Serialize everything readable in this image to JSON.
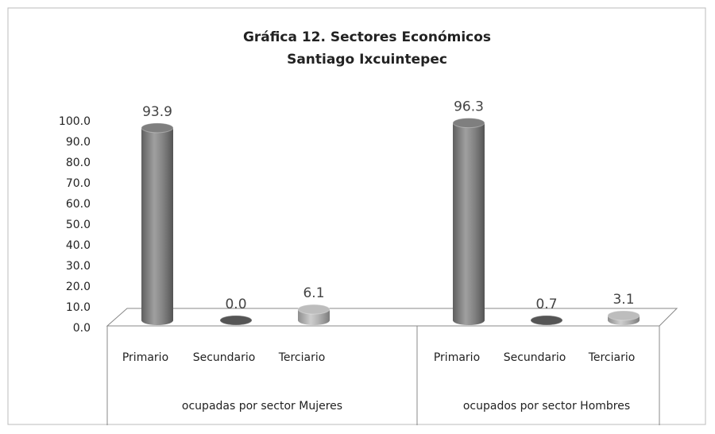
{
  "chart_data": {
    "type": "bar",
    "title": "Gráfica 12. Sectores Económicos",
    "subtitle": "Santiago Ixcuintepec",
    "colors": [
      "#7f7f7f",
      "#555555",
      "#bdbdbd"
    ],
    "groups": [
      {
        "name": "ocupadas por sector Mujeres",
        "categories": [
          "Primario",
          "Secundario",
          "Terciario"
        ],
        "values": [
          93.9,
          0.0,
          6.1
        ],
        "value_labels": [
          "93.9",
          "0.0",
          "6.1"
        ]
      },
      {
        "name": "ocupados por sector Hombres",
        "categories": [
          "Primario",
          "Secundario",
          "Terciario"
        ],
        "values": [
          96.3,
          0.7,
          3.1
        ],
        "value_labels": [
          "96.3",
          "0.7",
          "3.1"
        ]
      }
    ],
    "ylim": [
      0,
      100
    ],
    "yticks": [
      {
        "value": 0,
        "label": "0.0"
      },
      {
        "value": 10,
        "label": "10.0"
      },
      {
        "value": 20,
        "label": "20.0"
      },
      {
        "value": 30,
        "label": "30.0"
      },
      {
        "value": 40,
        "label": "40.0"
      },
      {
        "value": 50,
        "label": "50.0"
      },
      {
        "value": 60,
        "label": "60.0"
      },
      {
        "value": 70,
        "label": "70.0"
      },
      {
        "value": 80,
        "label": "80.0"
      },
      {
        "value": 90,
        "label": "90.0"
      },
      {
        "value": 100,
        "label": "100.0"
      }
    ]
  }
}
